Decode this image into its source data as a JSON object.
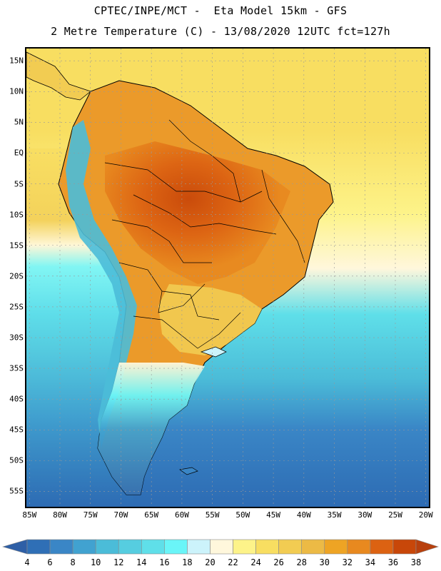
{
  "title": {
    "line1": "CPTEC/INPE/MCT -  Eta Model 15km - GFS",
    "line2": "2 Metre Temperature (C) - 13/08/2020 12UTC fct=127h"
  },
  "axes": {
    "lat_labels": [
      "15N",
      "10N",
      "5N",
      "EQ",
      "5S",
      "10S",
      "15S",
      "20S",
      "25S",
      "30S",
      "35S",
      "40S",
      "45S",
      "50S",
      "55S"
    ],
    "lat_values": [
      15,
      10,
      5,
      0,
      -5,
      -10,
      -15,
      -20,
      -25,
      -30,
      -35,
      -40,
      -45,
      -50,
      -55
    ],
    "lon_labels": [
      "85W",
      "80W",
      "75W",
      "70W",
      "65W",
      "60W",
      "55W",
      "50W",
      "45W",
      "40W",
      "35W",
      "30W",
      "25W",
      "20W"
    ],
    "lon_values": [
      -85,
      -80,
      -75,
      -70,
      -65,
      -60,
      -55,
      -50,
      -45,
      -40,
      -35,
      -30,
      -25,
      -20
    ],
    "lat_range": [
      -57.5,
      17.0
    ],
    "lon_range": [
      -85.5,
      -19.5
    ]
  },
  "colorbar": {
    "labels": [
      "4",
      "6",
      "8",
      "10",
      "12",
      "14",
      "16",
      "18",
      "20",
      "22",
      "24",
      "26",
      "28",
      "30",
      "32",
      "34",
      "36",
      "38"
    ],
    "colors": [
      "#2f6fb6",
      "#3a86c6",
      "#41a2d0",
      "#4bbcd8",
      "#56cde0",
      "#5fdfe9",
      "#6af5f8",
      "#ccf3fb",
      "#fff7dc",
      "#fdf389",
      "#f8de61",
      "#f2cc52",
      "#ecba45",
      "#eea424",
      "#e8891f",
      "#dc6212",
      "#c84709"
    ],
    "below_color": "#2e5fa6",
    "above_color": "#b8400d"
  },
  "colors": {
    "ocean_cold": "#2d6bb3",
    "ocean_cool": "#3aa9d6",
    "ocean_mild": "#5fdaea",
    "ocean_warm": "#fdf389",
    "land_hot": "#d9660f",
    "land_warm": "#eb9a2a",
    "andes_cold": "#4bbcd8",
    "patagonia_cold": "#2f6fb6"
  }
}
